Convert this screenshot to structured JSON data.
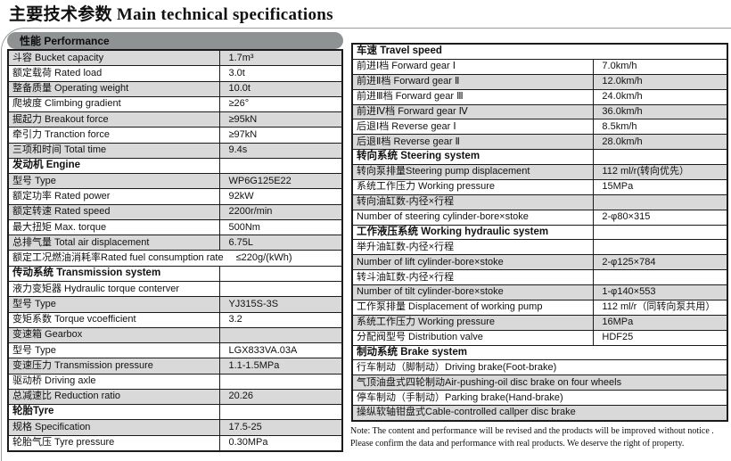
{
  "title": {
    "zh": "主要技术参数",
    "en": " Main technical specifications"
  },
  "colors": {
    "stripe": "#d9d9d9",
    "pill": "#8e9293",
    "table_border": "#1b1b1b",
    "frame_border": "#9b9b9b"
  },
  "performance_pill": "性能 Performance",
  "tables": {
    "left": {
      "rows": [
        {
          "type": "kv",
          "label": "斗容 Bucket capacity",
          "value": "1.7m³",
          "shade": true
        },
        {
          "type": "kv",
          "label": "额定载荷 Rated load",
          "value": "3.0t",
          "shade": false
        },
        {
          "type": "kv",
          "label": "整备质量 Operating weight",
          "value": "10.0t",
          "shade": true
        },
        {
          "type": "kv",
          "label": "爬坡度 Climbing gradient",
          "value": "≥26°",
          "shade": false
        },
        {
          "type": "kv",
          "label": "掘起力 Breakout force",
          "value": "≥95kN",
          "shade": true
        },
        {
          "type": "kv",
          "label": "牵引力 Tranction force",
          "value": "≥97kN",
          "shade": false
        },
        {
          "type": "kv",
          "label": "三项和时间 Total time",
          "value": "9.4s",
          "shade": true
        },
        {
          "type": "header",
          "label": "发动机 Engine",
          "divider": true,
          "shade": false
        },
        {
          "type": "kv",
          "label": "型号 Type",
          "value": "WP6G125E22",
          "shade": true
        },
        {
          "type": "kv",
          "label": "额定功率 Rated power",
          "value": "92kW",
          "shade": false
        },
        {
          "type": "kv",
          "label": "额定转速 Rated speed",
          "value": "2200r/min",
          "shade": true
        },
        {
          "type": "kv",
          "label": "最大扭矩 Max. torque",
          "value": "500Nm",
          "shade": false
        },
        {
          "type": "kv",
          "label": "总排气量 Total air displacement",
          "value": "6.75L",
          "shade": true
        },
        {
          "type": "inline",
          "label": "额定工况燃油消耗率Rated fuel consumption rate",
          "value": "≤220g/(kWh)",
          "shade": false
        },
        {
          "type": "header",
          "label": "传动系统 Transmission system",
          "divider": true,
          "shade": false
        },
        {
          "type": "kv",
          "label": "液力变矩器 Hydraulic torque conterver",
          "value": "",
          "shade": false
        },
        {
          "type": "kv",
          "label": "型号 Type",
          "value": "YJ315S-3S",
          "shade": true
        },
        {
          "type": "kv",
          "label": "变矩系数 Torque vcoefficient",
          "value": "3.2",
          "shade": false
        },
        {
          "type": "kv",
          "label": "变速箱 Gearbox",
          "value": "",
          "shade": true
        },
        {
          "type": "kv",
          "label": "型号 Type",
          "value": "LGX833VA.03A",
          "shade": false
        },
        {
          "type": "kv",
          "label": "变速压力 Transmission pressure",
          "value": "1.1-1.5MPa",
          "shade": true
        },
        {
          "type": "kv",
          "label": "驱动桥 Driving axle",
          "value": "",
          "shade": false
        },
        {
          "type": "kv",
          "label": "总减速比 Reduction ratio",
          "value": "20.26",
          "shade": true
        },
        {
          "type": "header",
          "label": "轮胎Tyre",
          "divider": true,
          "shade": false
        },
        {
          "type": "kv",
          "label": "规格 Specification",
          "value": "17.5-25",
          "shade": true
        },
        {
          "type": "kv",
          "label": "轮胎气压 Tyre pressure",
          "value": "0.30MPa",
          "shade": false
        }
      ]
    },
    "right": {
      "rows": [
        {
          "type": "header",
          "label": "车速 Travel speed",
          "divider": false,
          "shade": false
        },
        {
          "type": "kv",
          "label": "前进Ⅰ档 Forward gear Ⅰ",
          "value": "7.0km/h",
          "shade": false
        },
        {
          "type": "kv",
          "label": "前进Ⅱ档 Forward gear Ⅱ",
          "value": "12.0km/h",
          "shade": true
        },
        {
          "type": "kv",
          "label": "前进Ⅲ档 Forward gear Ⅲ",
          "value": "24.0km/h",
          "shade": false
        },
        {
          "type": "kv",
          "label": "前进Ⅳ档 Forward gear Ⅳ",
          "value": "36.0km/h",
          "shade": true
        },
        {
          "type": "kv",
          "label": "后退Ⅰ档 Reverse gear Ⅰ",
          "value": "8.5km/h",
          "shade": false
        },
        {
          "type": "kv",
          "label": "后退Ⅱ档 Reverse gear Ⅱ",
          "value": "28.0km/h",
          "shade": true
        },
        {
          "type": "header",
          "label": "转向系统 Steering system",
          "divider": true,
          "shade": false
        },
        {
          "type": "kv",
          "label": "转向泵排量Steering pump displacement",
          "value": "112 ml/r(转向优先）",
          "shade": true
        },
        {
          "type": "kv",
          "label": "系统工作压力 Working pressure",
          "value": "15MPa",
          "shade": false
        },
        {
          "type": "kv",
          "label": "转向油缸数-内径×行程",
          "value": "",
          "shade": true
        },
        {
          "type": "kv",
          "label": "Number of steering cylinder-bore×stoke",
          "value": "2-φ80×315",
          "shade": false
        },
        {
          "type": "header",
          "label": "工作液压系统 Working hydraulic system",
          "divider": true,
          "shade": false
        },
        {
          "type": "kv",
          "label": "举升油缸数-内径×行程",
          "value": "",
          "shade": false
        },
        {
          "type": "kv",
          "label": "Number of lift cylinder-bore×stoke",
          "value": "2-φ125×784",
          "shade": true
        },
        {
          "type": "kv",
          "label": "转斗油缸数-内径×行程",
          "value": "",
          "shade": false
        },
        {
          "type": "kv",
          "label": "Number of tilt cylinder-bore×stoke",
          "value": "1-φ140×553",
          "shade": true
        },
        {
          "type": "kv",
          "label": "工作泵排量 Displacement of working pump",
          "value": "112 ml/r（同转向泵共用）",
          "shade": false
        },
        {
          "type": "kv",
          "label": "系统工作压力 Working pressure",
          "value": "16MPa",
          "shade": true
        },
        {
          "type": "kv",
          "label": "分配阀型号 Distribution valve",
          "value": "HDF25",
          "shade": false
        },
        {
          "type": "header",
          "label": "制动系统 Brake system",
          "divider": false,
          "shade": false
        },
        {
          "type": "full",
          "label": "行车制动（脚制动）Driving brake(Foot-brake)",
          "shade": false
        },
        {
          "type": "full",
          "label": "气顶油盘式四轮制动Air-pushing-oil disc brake on four wheels",
          "shade": true
        },
        {
          "type": "full",
          "label": "停车制动（手制动）Parking brake(Hand-brake)",
          "shade": false
        },
        {
          "type": "full",
          "label": "操纵软轴钳盘式Cable-controlled callper disc brake",
          "shade": true
        }
      ]
    }
  },
  "note": {
    "line1": "Note: The content and performance will be revised and the products will be improved without notice .",
    "line2": "Please confirm the data and performance with real products. We deserve the right of property."
  }
}
